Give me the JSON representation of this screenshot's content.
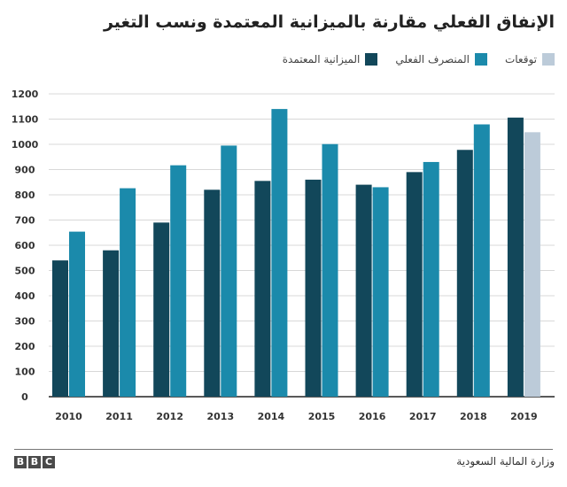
{
  "title": "الإنفاق الفعلي مقارنة بالميزانية المعتمدة ونسب التغير",
  "legend": {
    "forecast": "توقعات",
    "actual": "المنصرف الفعلي",
    "budget": "الميزانية المعتمدة"
  },
  "colors": {
    "budget": "#12475a",
    "actual": "#1b8aab",
    "forecast": "#bccbd9",
    "grid": "#d8d8d8",
    "axis": "#222222"
  },
  "footer": {
    "logo_letters": [
      "B",
      "B",
      "C"
    ],
    "source": "وزارة المالية السعودية"
  },
  "chart_data": {
    "type": "bar",
    "categories": [
      "2010",
      "2011",
      "2012",
      "2013",
      "2014",
      "2015",
      "2016",
      "2017",
      "2018",
      "2019"
    ],
    "series": [
      {
        "name": "الميزانية المعتمدة",
        "values": [
          540,
          580,
          690,
          820,
          855,
          860,
          840,
          890,
          978,
          1106
        ]
      },
      {
        "name": "المنصرف الفعلي",
        "values": [
          654,
          826,
          917,
          995,
          1140,
          1001,
          830,
          930,
          1079,
          null
        ]
      },
      {
        "name": "توقعات",
        "values": [
          null,
          null,
          null,
          null,
          null,
          null,
          null,
          null,
          null,
          1048
        ]
      }
    ],
    "ylim": [
      0,
      1200
    ],
    "yticks": [
      0,
      100,
      200,
      300,
      400,
      500,
      600,
      700,
      800,
      900,
      1000,
      1100,
      1200
    ],
    "grid": true,
    "legend_position": "top-right"
  }
}
